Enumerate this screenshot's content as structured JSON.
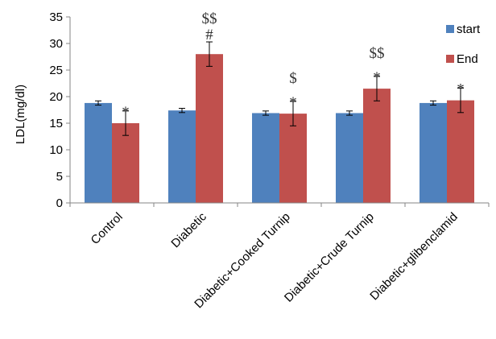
{
  "chart_data": {
    "type": "bar",
    "title": "",
    "xlabel": "",
    "ylabel": "LDL(mg/dl)",
    "ylim": [
      0,
      35
    ],
    "yticks": [
      0,
      5,
      10,
      15,
      20,
      25,
      30,
      35
    ],
    "grid": false,
    "legend_position": "right",
    "categories": [
      "Control",
      "Diabetic",
      "Diabetic+Cooked Turnip",
      "Diabetic+Crude Turnip",
      "Diabetic+glibenclamid"
    ],
    "series": [
      {
        "name": "start",
        "color": "#4f81bd",
        "values": [
          18.8,
          17.4,
          16.9,
          16.9,
          18.8
        ],
        "errors": [
          0.4,
          0.4,
          0.4,
          0.4,
          0.4
        ]
      },
      {
        "name": "End",
        "color": "#c0504d",
        "values": [
          15.0,
          28.0,
          16.8,
          21.5,
          19.3
        ],
        "errors": [
          2.3,
          2.3,
          2.3,
          2.3,
          2.3
        ]
      }
    ],
    "annotations": [
      {
        "category": 0,
        "series": 1,
        "lines": [
          "*"
        ]
      },
      {
        "category": 1,
        "series": 1,
        "lines": [
          "$$",
          "#"
        ]
      },
      {
        "category": 2,
        "series": 1,
        "lines": [
          "$",
          "*"
        ]
      },
      {
        "category": 3,
        "series": 1,
        "lines": [
          "$$",
          "*"
        ]
      },
      {
        "category": 4,
        "series": 1,
        "lines": [
          "*"
        ]
      }
    ]
  }
}
